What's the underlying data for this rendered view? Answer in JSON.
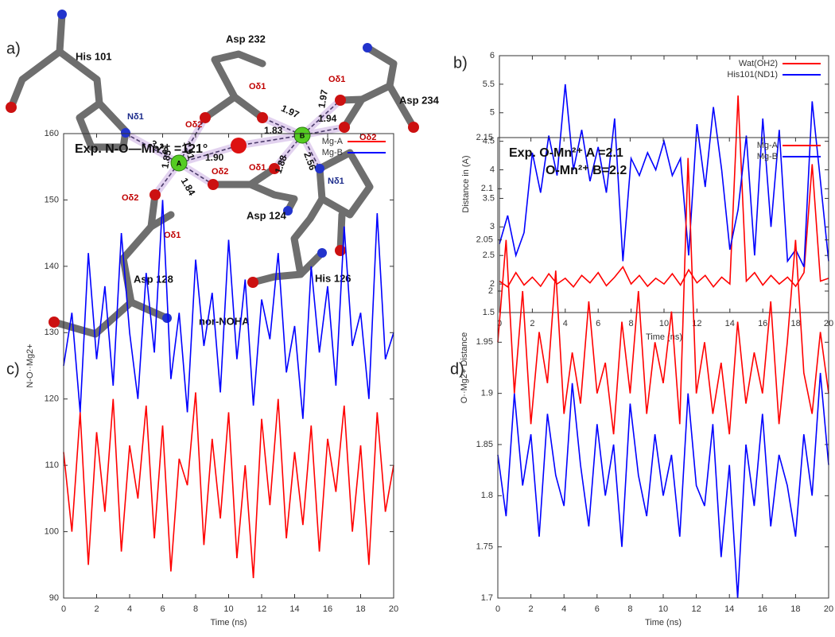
{
  "diagram": {
    "panel_label": "a)",
    "caption": "nor-NOHA",
    "metals": [
      "A",
      "B"
    ],
    "residues": [
      "His 101",
      "Asp 232",
      "Asp 234",
      "Asp 124",
      "Asp 128",
      "His 126"
    ],
    "atom_labels": [
      "Nδ1",
      "Oδ2",
      "Oδ1",
      "Oδ1",
      "Oδ2",
      "Oδ2",
      "Oδ1",
      "Oδ2",
      "Oδ1",
      "Nδ1"
    ],
    "distances": [
      "3.78",
      "1.91",
      "1.90",
      "1.85",
      "1.84",
      "1.83",
      "1.88",
      "1.97",
      "1.97",
      "1.94",
      "2.56"
    ]
  },
  "chart_data": [
    {
      "type": "line",
      "panel_label": "b)",
      "x_label": "Time (ns)",
      "y_label": "Distance in (A)",
      "x": [
        0,
        0.5,
        1,
        1.5,
        2,
        2.5,
        3,
        3.5,
        4,
        4.5,
        5,
        5.5,
        6,
        6.5,
        7,
        7.5,
        8,
        8.5,
        9,
        9.5,
        10,
        10.5,
        11,
        11.5,
        12,
        12.5,
        13,
        13.5,
        14,
        14.5,
        15,
        15.5,
        16,
        16.5,
        17,
        17.5,
        18,
        18.5,
        19,
        19.5,
        20
      ],
      "series": [
        {
          "name": "Wat(OH2)",
          "color": "#ff0000",
          "values": [
            2.05,
            1.95,
            2.2,
            1.98,
            2.12,
            1.96,
            2.18,
            2.0,
            2.1,
            1.95,
            2.15,
            2.02,
            2.2,
            1.97,
            2.12,
            2.3,
            2.0,
            2.15,
            1.96,
            2.1,
            2.0,
            2.18,
            1.98,
            2.25,
            2.02,
            2.15,
            1.95,
            2.12,
            2.0,
            5.3,
            2.05,
            2.2,
            1.98,
            2.15,
            2.0,
            2.12,
            1.96,
            2.2,
            4.1,
            2.05,
            2.1
          ]
        },
        {
          "name": "His101(ND1)",
          "color": "#0000ff",
          "values": [
            2.7,
            3.2,
            2.5,
            2.9,
            4.3,
            3.6,
            4.6,
            3.9,
            5.5,
            4.0,
            4.7,
            3.8,
            4.4,
            3.6,
            4.9,
            2.4,
            4.2,
            3.9,
            4.3,
            4.0,
            4.5,
            3.9,
            4.2,
            2.5,
            4.8,
            3.7,
            5.1,
            4.0,
            2.6,
            3.3,
            4.6,
            2.5,
            4.9,
            3.0,
            4.7,
            2.4,
            2.6,
            2.3,
            5.2,
            3.8,
            2.4
          ]
        }
      ],
      "xlim": [
        0,
        20
      ],
      "xticks": [
        0,
        2,
        4,
        6,
        8,
        10,
        12,
        14,
        16,
        18,
        20
      ],
      "ylim": [
        1.5,
        6
      ],
      "yticks": [
        1.5,
        2,
        2.5,
        3,
        3.5,
        4,
        4.5,
        5,
        5.5,
        6
      ],
      "legend": "upper right"
    },
    {
      "type": "line",
      "panel_label": "c)",
      "x_label": "Time (ns)",
      "y_label": "N-O··Mg2+",
      "annotation": [
        "Exp. N-O—Mn²⁺ =121°"
      ],
      "x": [
        0,
        0.5,
        1,
        1.5,
        2,
        2.5,
        3,
        3.5,
        4,
        4.5,
        5,
        5.5,
        6,
        6.5,
        7,
        7.5,
        8,
        8.5,
        9,
        9.5,
        10,
        10.5,
        11,
        11.5,
        12,
        12.5,
        13,
        13.5,
        14,
        14.5,
        15,
        15.5,
        16,
        16.5,
        17,
        17.5,
        18,
        18.5,
        19,
        19.5,
        20
      ],
      "series": [
        {
          "name": "Mg-A",
          "color": "#ff0000",
          "values": [
            112,
            100,
            118,
            95,
            115,
            103,
            120,
            97,
            113,
            105,
            119,
            99,
            116,
            94,
            111,
            107,
            121,
            98,
            114,
            102,
            118,
            96,
            110,
            93,
            117,
            104,
            120,
            99,
            112,
            101,
            116,
            97,
            114,
            106,
            119,
            100,
            113,
            95,
            118,
            103,
            110
          ]
        },
        {
          "name": "Mg-B",
          "color": "#0000ff",
          "values": [
            125,
            133,
            118,
            142,
            126,
            137,
            122,
            145,
            130,
            120,
            139,
            127,
            150,
            123,
            133,
            118,
            141,
            128,
            136,
            121,
            144,
            126,
            138,
            119,
            135,
            129,
            142,
            124,
            131,
            117,
            140,
            127,
            137,
            122,
            146,
            128,
            133,
            120,
            148,
            126,
            130
          ]
        }
      ],
      "xlim": [
        0,
        20
      ],
      "xticks": [
        0,
        2,
        4,
        6,
        8,
        10,
        12,
        14,
        16,
        18,
        20
      ],
      "ylim": [
        90,
        160
      ],
      "yticks": [
        90,
        100,
        110,
        120,
        130,
        140,
        150,
        160
      ],
      "legend": "upper right"
    },
    {
      "type": "line",
      "panel_label": "d)",
      "x_label": "Time (ns)",
      "y_label": "O··Mg2+ Distance",
      "annotation": [
        "Exp. O-Mn²⁺ A =2.1",
        "O-Mn²⁺ B=2.2"
      ],
      "x": [
        0,
        0.5,
        1,
        1.5,
        2,
        2.5,
        3,
        3.5,
        4,
        4.5,
        5,
        5.5,
        6,
        6.5,
        7,
        7.5,
        8,
        8.5,
        9,
        9.5,
        10,
        10.5,
        11,
        11.5,
        12,
        12.5,
        13,
        13.5,
        14,
        14.5,
        15,
        15.5,
        16,
        16.5,
        17,
        17.5,
        18,
        18.5,
        19,
        19.5,
        20
      ],
      "series": [
        {
          "name": "Mg-A",
          "color": "#ff0000",
          "values": [
            1.95,
            2.05,
            1.9,
            2.0,
            1.87,
            1.96,
            1.91,
            2.02,
            1.88,
            1.94,
            1.89,
            1.99,
            1.9,
            1.93,
            1.86,
            1.97,
            1.9,
            2.0,
            1.88,
            1.95,
            1.91,
            1.98,
            1.87,
            2.13,
            1.9,
            1.95,
            1.88,
            1.93,
            1.86,
            1.97,
            1.89,
            1.94,
            1.9,
            1.99,
            1.87,
            1.95,
            2.05,
            1.92,
            1.88,
            1.96,
            1.9
          ]
        },
        {
          "name": "Mg-B",
          "color": "#0000ff",
          "values": [
            1.84,
            1.78,
            1.9,
            1.81,
            1.86,
            1.76,
            1.88,
            1.82,
            1.79,
            1.91,
            1.83,
            1.77,
            1.87,
            1.8,
            1.85,
            1.75,
            1.89,
            1.82,
            1.78,
            1.86,
            1.8,
            1.84,
            1.76,
            1.9,
            1.81,
            1.79,
            1.87,
            1.74,
            1.83,
            1.7,
            1.85,
            1.79,
            1.88,
            1.77,
            1.84,
            1.81,
            1.76,
            1.86,
            1.8,
            1.92,
            1.83
          ]
        }
      ],
      "xlim": [
        0,
        20
      ],
      "xticks": [
        0,
        2,
        4,
        6,
        8,
        10,
        12,
        14,
        16,
        18,
        20
      ],
      "ylim": [
        1.7,
        2.15
      ],
      "yticks": [
        1.7,
        1.75,
        1.8,
        1.85,
        1.9,
        1.95,
        2,
        2.05,
        2.1,
        2.15
      ],
      "legend": "upper right"
    }
  ]
}
